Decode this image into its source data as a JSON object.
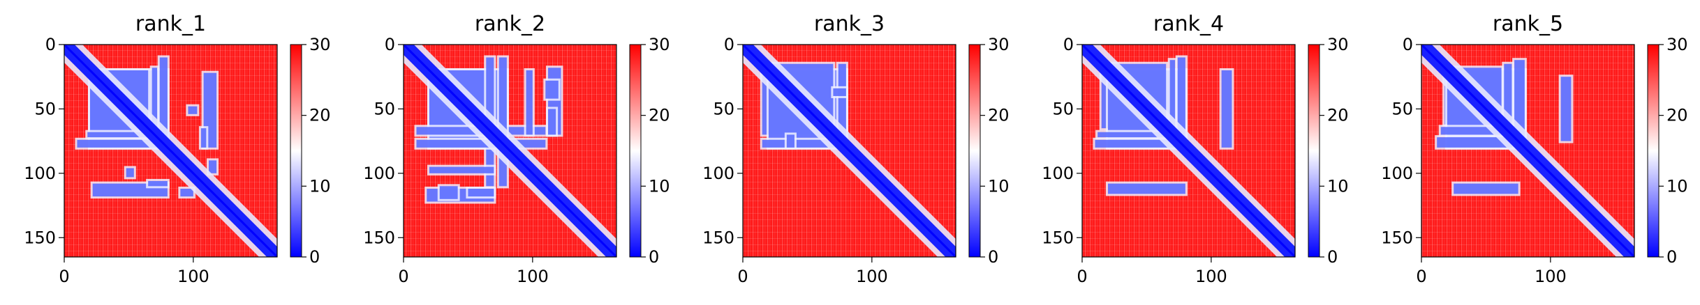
{
  "chart_data": [
    {
      "type": "heatmap",
      "title": "rank_1",
      "x_ticks": [
        0,
        100
      ],
      "y_ticks": [
        0,
        50,
        100,
        150
      ],
      "xlim": [
        0,
        165
      ],
      "ylim": [
        165,
        0
      ],
      "colorbar": {
        "min": 0,
        "max": 30,
        "ticks": [
          0,
          10,
          20,
          30
        ],
        "colormap": [
          "#0000ff",
          "#ffffff",
          "#ff0000"
        ]
      },
      "low_regions": [
        [
          20,
          80,
          20,
          65
        ],
        [
          18,
          80,
          68,
          72
        ],
        [
          10,
          80,
          74,
          80
        ],
        [
          108,
          118,
          22,
          80
        ],
        [
          96,
          103,
          48,
          54
        ],
        [
          65,
          80,
          106,
          110
        ],
        [
          90,
          100,
          112,
          118
        ]
      ]
    },
    {
      "type": "heatmap",
      "title": "rank_2",
      "x_ticks": [
        0,
        100
      ],
      "y_ticks": [
        0,
        50,
        100,
        150
      ],
      "xlim": [
        0,
        165
      ],
      "ylim": [
        165,
        0
      ],
      "colorbar": {
        "min": 0,
        "max": 30,
        "ticks": [
          0,
          10,
          20,
          30
        ],
        "colormap": [
          "#0000ff",
          "#ffffff",
          "#ff0000"
        ]
      },
      "low_regions": [
        [
          20,
          80,
          20,
          65
        ],
        [
          10,
          110,
          64,
          70
        ],
        [
          10,
          110,
          74,
          80
        ],
        [
          95,
          100,
          20,
          70
        ],
        [
          112,
          122,
          18,
          70
        ],
        [
          28,
          42,
          110,
          120
        ],
        [
          50,
          70,
          112,
          118
        ]
      ]
    },
    {
      "type": "heatmap",
      "title": "rank_3",
      "x_ticks": [
        0,
        100
      ],
      "y_ticks": [
        0,
        50,
        100,
        150
      ],
      "xlim": [
        0,
        165
      ],
      "ylim": [
        165,
        0
      ],
      "colorbar": {
        "min": 0,
        "max": 30,
        "ticks": [
          0,
          10,
          20,
          30
        ],
        "colormap": [
          "#0000ff",
          "#ffffff",
          "#ff0000"
        ]
      },
      "low_regions": [
        [
          15,
          80,
          20,
          70
        ],
        [
          15,
          80,
          74,
          80
        ],
        [
          70,
          80,
          34,
          40
        ]
      ]
    },
    {
      "type": "heatmap",
      "title": "rank_4",
      "x_ticks": [
        0,
        100
      ],
      "y_ticks": [
        0,
        50,
        100,
        150
      ],
      "xlim": [
        0,
        165
      ],
      "ylim": [
        165,
        0
      ],
      "colorbar": {
        "min": 0,
        "max": 30,
        "ticks": [
          0,
          10,
          20,
          30
        ],
        "colormap": [
          "#0000ff",
          "#ffffff",
          "#ff0000"
        ]
      },
      "low_regions": [
        [
          15,
          80,
          20,
          65
        ],
        [
          12,
          80,
          68,
          72
        ],
        [
          10,
          80,
          74,
          80
        ],
        [
          108,
          116,
          20,
          80
        ]
      ]
    },
    {
      "type": "heatmap",
      "title": "rank_5",
      "x_ticks": [
        0,
        100
      ],
      "y_ticks": [
        0,
        50,
        100,
        150
      ],
      "xlim": [
        0,
        165
      ],
      "ylim": [
        165,
        0
      ],
      "colorbar": {
        "min": 0,
        "max": 30,
        "ticks": [
          0,
          10,
          20,
          30
        ],
        "colormap": [
          "#0000ff",
          "#ffffff",
          "#ff0000"
        ]
      },
      "low_regions": [
        [
          18,
          80,
          20,
          62
        ],
        [
          15,
          80,
          64,
          70
        ],
        [
          12,
          80,
          72,
          80
        ],
        [
          108,
          116,
          25,
          75
        ]
      ]
    }
  ]
}
